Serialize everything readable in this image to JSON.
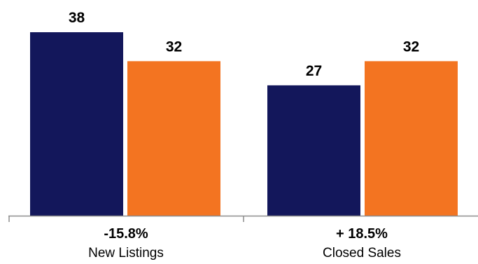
{
  "colors": {
    "series_a": "#13175b",
    "series_b": "#f37421",
    "axis": "#8c8c8c",
    "text": "#000000"
  },
  "chart_data": {
    "type": "bar",
    "categories": [
      "New Listings",
      "Closed Sales"
    ],
    "change_labels": [
      "-15.8%",
      "+ 18.5%"
    ],
    "series": [
      {
        "values": [
          38,
          27
        ]
      },
      {
        "values": [
          32,
          32
        ]
      }
    ],
    "title": "",
    "xlabel": "",
    "ylabel": "",
    "ylim": [
      0,
      38
    ],
    "grid": false,
    "data_labels": true
  }
}
